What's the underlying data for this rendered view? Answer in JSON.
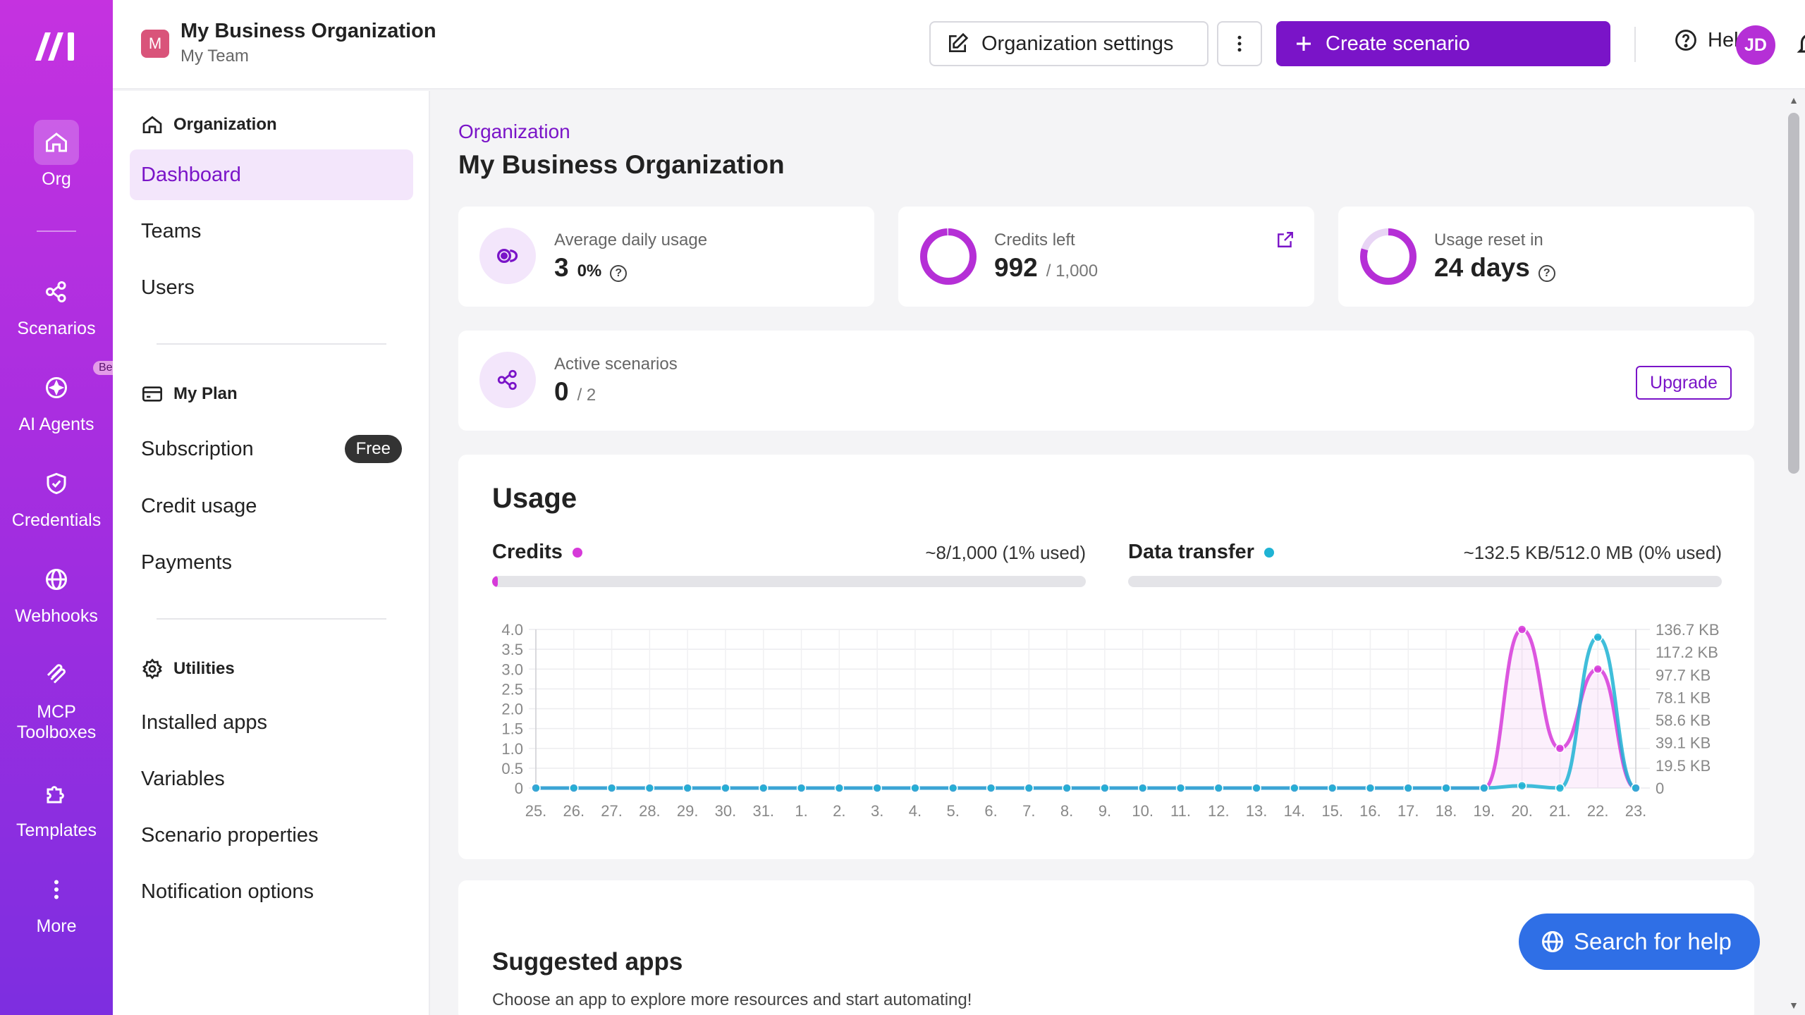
{
  "rail": {
    "items": [
      {
        "label": "Org",
        "icon": "home-icon"
      },
      {
        "label": "Scenarios",
        "icon": "share-icon"
      },
      {
        "label": "AI Agents",
        "icon": "sparkle-icon",
        "badge": "Beta"
      },
      {
        "label": "Credentials",
        "icon": "shield-icon"
      },
      {
        "label": "Webhooks",
        "icon": "globe-icon"
      },
      {
        "label": "MCP",
        "label2": "Toolboxes",
        "icon": "mcp-icon"
      },
      {
        "label": "Templates",
        "icon": "puzzle-icon"
      },
      {
        "label": "More",
        "icon": "kebab-icon"
      }
    ]
  },
  "header": {
    "org_initial": "M",
    "org_name": "My Business Organization",
    "team": "My Team",
    "settings_label": "Organization settings",
    "create_label": "Create scenario",
    "help_label": "Help",
    "user_initials": "JD"
  },
  "subnav": {
    "sections": [
      {
        "title": "Organization",
        "items": [
          "Dashboard",
          "Teams",
          "Users"
        ]
      },
      {
        "title": "My Plan",
        "items": [
          "Subscription",
          "Credit usage",
          "Payments"
        ],
        "badge": "Free"
      },
      {
        "title": "Utilities",
        "items": [
          "Installed apps",
          "Variables",
          "Scenario properties",
          "Notification options"
        ]
      }
    ],
    "active": "Dashboard"
  },
  "main": {
    "breadcrumb": "Organization",
    "title": "My Business Organization",
    "stats": {
      "avg_label": "Average daily usage",
      "avg_value": "3",
      "avg_pct": "0%",
      "credits_label": "Credits left",
      "credits_value": "992",
      "credits_total": "/ 1,000",
      "reset_label": "Usage reset in",
      "reset_value": "24 days",
      "active_label": "Active scenarios",
      "active_value": "0",
      "active_total": "/ 2",
      "upgrade_label": "Upgrade"
    },
    "usage": {
      "title": "Usage",
      "credits_label": "Credits",
      "credits_text": "~8/1,000 (1% used)",
      "credits_fraction": 0.01,
      "data_label": "Data transfer",
      "data_text": "~132.5 KB/512.0 MB (0% used)",
      "data_fraction": 0.0
    },
    "suggested": {
      "title": "Suggested apps",
      "desc": "Choose an app to explore more resources and start automating!"
    },
    "search_help_label": "Search for help"
  },
  "colors": {
    "accent": "#7a14c8",
    "credits": "#d63ad9",
    "data": "#1fb3d4",
    "search_btn": "#2f6fe6"
  },
  "chart_data": {
    "type": "line",
    "categories": [
      "25.",
      "26.",
      "27.",
      "28.",
      "29.",
      "30.",
      "31.",
      "1.",
      "2.",
      "3.",
      "4.",
      "5.",
      "6.",
      "7.",
      "8.",
      "9.",
      "10.",
      "11.",
      "12.",
      "13.",
      "14.",
      "15.",
      "16.",
      "17.",
      "18.",
      "19.",
      "20.",
      "21.",
      "22.",
      "23."
    ],
    "y_left_ticks": [
      "4.0",
      "3.5",
      "3.0",
      "2.5",
      "2.0",
      "1.5",
      "1.0",
      "0.5",
      "0"
    ],
    "y_right_ticks": [
      "136.7 KB",
      "117.2 KB",
      "97.7 KB",
      "78.1 KB",
      "58.6 KB",
      "39.1 KB",
      "19.5 KB",
      "0"
    ],
    "ylim_left": [
      0,
      4
    ],
    "ylim_right": [
      0,
      136.7
    ],
    "series": [
      {
        "name": "Credits",
        "axis": "left",
        "values": [
          0,
          0,
          0,
          0,
          0,
          0,
          0,
          0,
          0,
          0,
          0,
          0,
          0,
          0,
          0,
          0,
          0,
          0,
          0,
          0,
          0,
          0,
          0,
          0,
          0,
          0,
          4.0,
          1.0,
          3.0,
          0
        ]
      },
      {
        "name": "Data transfer",
        "axis": "right",
        "values": [
          0,
          0,
          0,
          0,
          0,
          0,
          0,
          0,
          0,
          0,
          0,
          0,
          0,
          0,
          0,
          0,
          0,
          0,
          0,
          0,
          0,
          0,
          0,
          0,
          0,
          0,
          2,
          0,
          130,
          0
        ]
      }
    ]
  }
}
